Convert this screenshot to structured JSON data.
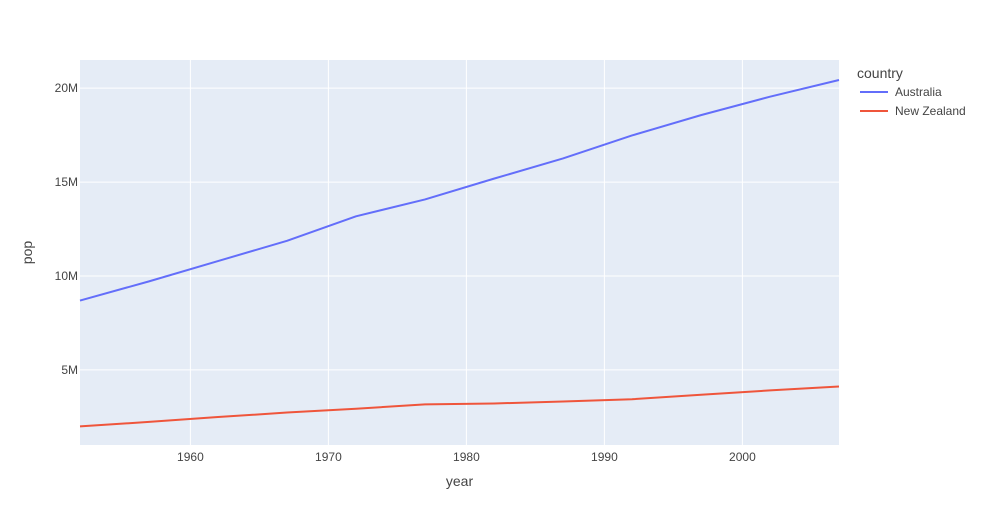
{
  "chart_data": {
    "type": "line",
    "xlabel": "year",
    "ylabel": "pop",
    "xlim": [
      1952,
      2007
    ],
    "ylim": [
      1000000,
      21500000
    ],
    "x_ticks": [
      1960,
      1970,
      1980,
      1990,
      2000
    ],
    "x_tick_labels": [
      "1960",
      "1970",
      "1980",
      "1990",
      "2000"
    ],
    "y_ticks": [
      5000000,
      10000000,
      15000000,
      20000000
    ],
    "y_tick_labels": [
      "5M",
      "10M",
      "15M",
      "20M"
    ],
    "grid": true,
    "plot_background": "#E5ECF6",
    "grid_color": "#FFFFFF",
    "legend": {
      "title": "country",
      "placement": "top-right, outside plot"
    },
    "x": [
      1952,
      1957,
      1962,
      1967,
      1972,
      1977,
      1982,
      1987,
      1992,
      1997,
      2002,
      2007
    ],
    "series": [
      {
        "name": "Australia",
        "color": "#636EFA",
        "values": [
          8691212,
          9712569,
          10794968,
          11872264,
          13177000,
          14074100,
          15184200,
          16257249,
          17481977,
          18565243,
          19546792,
          20434176
        ]
      },
      {
        "name": "New Zealand",
        "color": "#EF553B",
        "values": [
          1994794,
          2229407,
          2488550,
          2728150,
          2929100,
          3164900,
          3210650,
          3317166,
          3437674,
          3676187,
          3908037,
          4115771
        ]
      }
    ]
  }
}
